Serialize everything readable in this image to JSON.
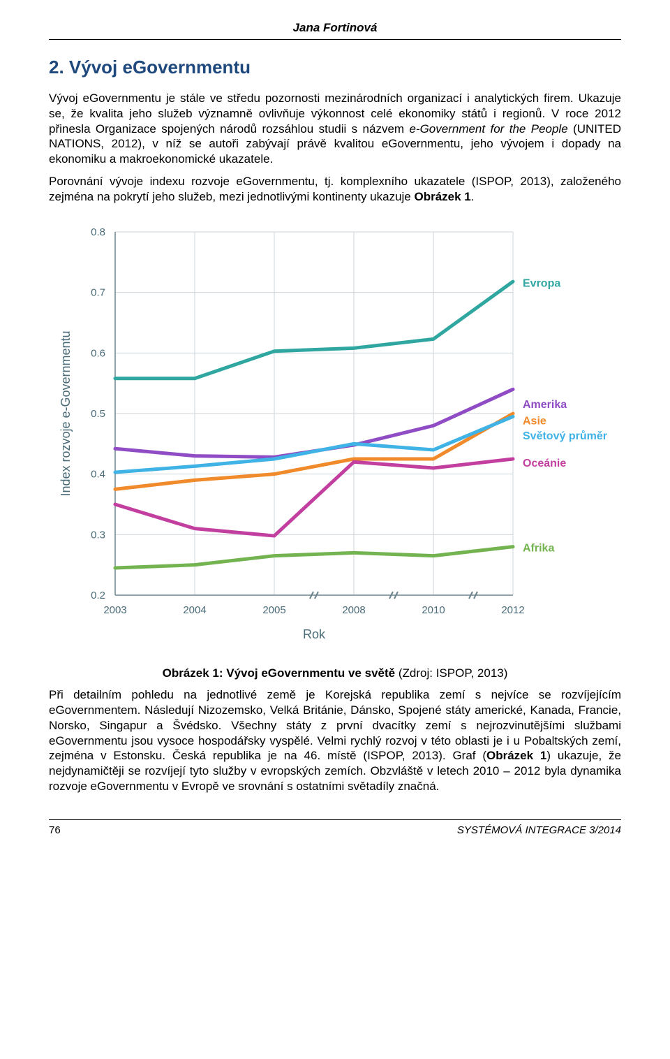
{
  "author": "Jana Fortinová",
  "section_title": "2. Vývoj eGovernmentu",
  "para1_a": "Vývoj eGovernmentu je stále ve středu pozornosti mezinárodních organizací i analytických firem. Ukazuje se, že kvalita jeho služeb významně ovlivňuje výkonnost celé ekonomiky států i regionů. V roce 2012 přinesla Organizace spojených národů rozsáhlou studii s názvem ",
  "para1_italic": "e-Government for the People",
  "para1_b": " (UNITED NATIONS, 2012), v níž se autoři zabývají právě kvalitou eGovernmentu, jeho vývojem i dopady na ekonomiku a makroekonomické ukazatele.",
  "para2_a": "Porovnání vývoje indexu rozvoje eGovernmentu, tj. komplexního ukazatele (ISPOP, 2013), založeného zejména na pokrytí jeho služeb, mezi jednotlivými kontinenty ukazuje ",
  "para2_bold": "Obrázek 1",
  "para2_b": ".",
  "caption_bold": "Obrázek 1: Vývoj eGovernmentu ve světě ",
  "caption_plain": "(Zdroj: ISPOP, 2013)",
  "para3_a": "Při detailním pohledu na jednotlivé země je Korejská republika zemí s nejvíce se rozvíjejícím eGovernmentem. Následují Nizozemsko, Velká Británie, Dánsko, Spojené státy americké, Kanada, Francie, Norsko, Singapur a Švédsko. Všechny státy z první dvacítky zemí s nejrozvinutějšími službami eGovernmentu jsou vysoce hospodářsky vyspělé. Velmi rychlý rozvoj v této oblasti je i u Pobaltských zemí, zejména v Estonsku. Česká republika je na 46. místě (ISPOP, 2013). Graf (",
  "para3_bold": "Obrázek 1",
  "para3_b": ") ukazuje, že nejdynamičtěji se rozvíjejí tyto služby v evropských zemích. Obzvláště v letech 2010 – 2012 byla dynamika rozvoje eGovernmentu v Evropě ve srovnání s ostatními světadíly značná.",
  "footer_page": "76",
  "footer_issue": "SYSTÉMOVÁ INTEGRACE 3/2014",
  "chart": {
    "type": "line",
    "background_color": "#ffffff",
    "grid_color": "#cdd6db",
    "axis_color": "#6c838d",
    "axis_break_color": "#6c838d",
    "ylabel": "Index rozvoje e-Governmentu",
    "xlabel": "Rok",
    "label_color": "#4a6b78",
    "label_fontsize": 18,
    "tick_fontsize": 15,
    "x_ticks": [
      "2003",
      "2004",
      "2005",
      "2008",
      "2010",
      "2012"
    ],
    "y_min": 0.2,
    "y_max": 0.8,
    "y_step": 0.1,
    "line_width": 5,
    "series": [
      {
        "name": "Evropa",
        "color": "#2fa7a0",
        "label_y": 0.715,
        "values": [
          0.558,
          0.558,
          0.603,
          0.608,
          0.623,
          0.718
        ]
      },
      {
        "name": "Amerika",
        "color": "#8f4cc4",
        "label_y": 0.515,
        "values": [
          0.442,
          0.43,
          0.428,
          0.448,
          0.48,
          0.54
        ]
      },
      {
        "name": "Asie",
        "color": "#f08a2a",
        "label_y": 0.488,
        "values": [
          0.375,
          0.39,
          0.4,
          0.425,
          0.425,
          0.5
        ]
      },
      {
        "name": "Světový průměr",
        "color": "#3fb2e6",
        "label_y": 0.463,
        "values": [
          0.403,
          0.413,
          0.425,
          0.45,
          0.44,
          0.495
        ]
      },
      {
        "name": "Oceánie",
        "color": "#c23fa0",
        "label_y": 0.418,
        "values": [
          0.35,
          0.31,
          0.298,
          0.42,
          0.41,
          0.425
        ]
      },
      {
        "name": "Afrika",
        "color": "#73b451",
        "label_y": 0.278,
        "values": [
          0.245,
          0.25,
          0.265,
          0.27,
          0.265,
          0.28
        ]
      }
    ]
  }
}
